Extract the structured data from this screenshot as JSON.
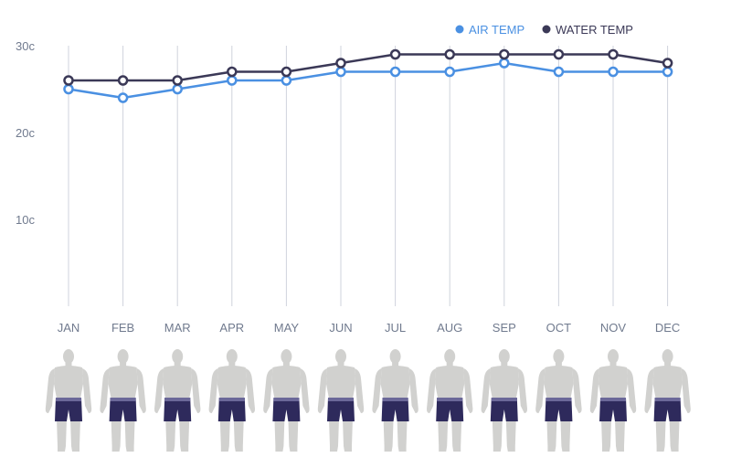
{
  "chart_data": {
    "type": "line",
    "categories": [
      "JAN",
      "FEB",
      "MAR",
      "APR",
      "MAY",
      "JUN",
      "JUL",
      "AUG",
      "SEP",
      "OCT",
      "NOV",
      "DEC"
    ],
    "series": [
      {
        "name": "AIR TEMP",
        "color": "#4a90e2",
        "values": [
          25,
          24,
          25,
          26,
          26,
          27,
          27,
          27,
          28,
          27,
          27,
          27
        ]
      },
      {
        "name": "WATER TEMP",
        "color": "#3b3957",
        "values": [
          26,
          26,
          26,
          27,
          27,
          28,
          29,
          29,
          29,
          29,
          29,
          28
        ]
      }
    ],
    "yticks": [
      {
        "value": 10,
        "label": "10c"
      },
      {
        "value": 20,
        "label": "20c"
      },
      {
        "value": 30,
        "label": "30c"
      }
    ],
    "ylim": [
      0,
      30
    ],
    "legend_position": "top-right",
    "grid": "vertical"
  },
  "figure": {
    "icon": "person-in-swim-shorts-icon",
    "body_color": "#d1d1cf",
    "shorts_color": "#2e2a5c",
    "waistband_color": "#6b6899"
  }
}
